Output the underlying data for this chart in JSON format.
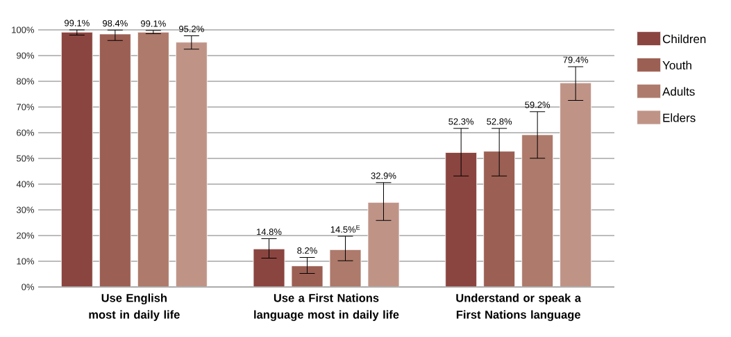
{
  "chart_data": {
    "type": "bar",
    "categories": [
      "Use English most in daily life",
      "Use a First Nations language most in daily life",
      "Understand or speak a First Nations language"
    ],
    "series": [
      {
        "name": "Children",
        "color": "#8b4540",
        "values": [
          99.1,
          14.8,
          52.3
        ],
        "errors": [
          [
            98.0,
            100
          ],
          [
            11.2,
            18.8
          ],
          [
            43.2,
            61.7
          ]
        ],
        "value_labels": [
          "99.1%",
          "14.8%",
          "52.3%"
        ]
      },
      {
        "name": "Youth",
        "color": "#9c5f54",
        "values": [
          98.4,
          8.2,
          52.8
        ],
        "errors": [
          [
            95.9,
            99.9
          ],
          [
            5.3,
            11.5
          ],
          [
            43.2,
            61.7
          ]
        ],
        "value_labels": [
          "98.4%",
          "8.2%",
          "52.8%"
        ]
      },
      {
        "name": "Adults",
        "color": "#ad7a6b",
        "values": [
          99.1,
          14.5,
          59.2
        ],
        "errors": [
          [
            98.5,
            99.8
          ],
          [
            10.2,
            19.7
          ],
          [
            50.1,
            68.2
          ]
        ],
        "value_labels": [
          "99.1%",
          "14.5%$^{E}$",
          "59.2%"
        ]
      },
      {
        "name": "Elders",
        "color": "#bf9487",
        "values": [
          95.2,
          32.9,
          79.4
        ],
        "errors": [
          [
            92.5,
            97.7
          ],
          [
            25.9,
            40.6
          ],
          [
            72.6,
            85.7
          ]
        ],
        "value_labels": [
          "95.2%",
          "32.9%",
          "79.4%"
        ]
      }
    ],
    "ylim": [
      0,
      100
    ],
    "yticks": [
      {
        "value": 0,
        "label": "0%"
      },
      {
        "value": 10,
        "label": "10%"
      },
      {
        "value": 20,
        "label": "20%"
      },
      {
        "value": 30,
        "label": "30%"
      },
      {
        "value": 40,
        "label": "40%"
      },
      {
        "value": 50,
        "label": "50%"
      },
      {
        "value": 60,
        "label": "60%"
      },
      {
        "value": 70,
        "label": "70%"
      },
      {
        "value": 80,
        "label": "80%"
      },
      {
        "value": 90,
        "label": "90%"
      },
      {
        "value": 100,
        "label": "100%"
      }
    ],
    "grid": "y",
    "legend": "right"
  }
}
